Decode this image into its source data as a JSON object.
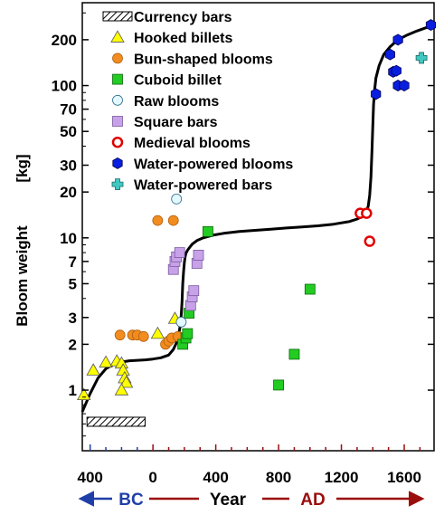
{
  "chart_data": {
    "type": "scatter",
    "xlabel": "Year",
    "ylabel": "Bloom weight",
    "ylabel_unit": "[kg]",
    "y_scale": "log",
    "xlim": [
      -450,
      1790
    ],
    "ylim": [
      0.4,
      350
    ],
    "x_ticks": [
      {
        "value": -400,
        "label": "400"
      },
      {
        "value": 0,
        "label": "0"
      },
      {
        "value": 400,
        "label": "400"
      },
      {
        "value": 800,
        "label": "800"
      },
      {
        "value": 1200,
        "label": "1200"
      },
      {
        "value": 1600,
        "label": "1600"
      }
    ],
    "y_ticks": [
      {
        "value": 1,
        "label": "1"
      },
      {
        "value": 2,
        "label": "2"
      },
      {
        "value": 3,
        "label": "3"
      },
      {
        "value": 5,
        "label": "5"
      },
      {
        "value": 7,
        "label": "7"
      },
      {
        "value": 10,
        "label": "10"
      },
      {
        "value": 20,
        "label": "20"
      },
      {
        "value": 30,
        "label": "30"
      },
      {
        "value": 50,
        "label": "50"
      },
      {
        "value": 70,
        "label": "70"
      },
      {
        "value": 100,
        "label": "100"
      },
      {
        "value": 200,
        "label": "200"
      }
    ],
    "era_labels": {
      "bc": "BC",
      "ad": "AD",
      "bc_color": "#1f3fa8",
      "ad_color": "#9b0d0d"
    },
    "legend_position": "top",
    "series": [
      {
        "name": "Currency bars",
        "marker": "hatched-rect",
        "color": "#000000",
        "range": {
          "x": [
            -420,
            -50
          ],
          "y": 0.62
        }
      },
      {
        "name": "Hooked billets",
        "marker": "triangle",
        "color": "#ffff00",
        "points": [
          [
            -440,
            0.93
          ],
          [
            -380,
            1.35
          ],
          [
            -300,
            1.52
          ],
          [
            -230,
            1.55
          ],
          [
            -200,
            1.5
          ],
          [
            -190,
            1.35
          ],
          [
            -180,
            1.2
          ],
          [
            -170,
            1.12
          ],
          [
            -200,
            1.0
          ],
          [
            30,
            2.35
          ],
          [
            140,
            2.95
          ]
        ]
      },
      {
        "name": "Bun-shaped blooms",
        "marker": "circle",
        "color": "#f28c1e",
        "points": [
          [
            -210,
            2.3
          ],
          [
            -130,
            2.3
          ],
          [
            -100,
            2.3
          ],
          [
            -60,
            2.25
          ],
          [
            30,
            13.0
          ],
          [
            130,
            13.0
          ],
          [
            80,
            2.0
          ],
          [
            100,
            2.1
          ],
          [
            120,
            2.2
          ],
          [
            160,
            2.25
          ]
        ]
      },
      {
        "name": "Cuboid billet",
        "marker": "square",
        "color": "#22cc22",
        "points": [
          [
            190,
            2.0
          ],
          [
            210,
            2.2
          ],
          [
            220,
            2.35
          ],
          [
            230,
            3.2
          ],
          [
            350,
            11.0
          ],
          [
            800,
            1.08
          ],
          [
            900,
            1.72
          ],
          [
            1000,
            4.6
          ]
        ]
      },
      {
        "name": "Raw blooms",
        "marker": "circle",
        "color": "#e4f8ff",
        "points": [
          [
            150,
            18.0
          ],
          [
            180,
            2.8
          ]
        ]
      },
      {
        "name": "Square bars",
        "marker": "square",
        "color": "#c8a2e8",
        "points": [
          [
            130,
            6.2
          ],
          [
            140,
            7.0
          ],
          [
            150,
            7.5
          ],
          [
            170,
            8.0
          ],
          [
            240,
            3.6
          ],
          [
            250,
            4.1
          ],
          [
            260,
            4.5
          ],
          [
            280,
            6.8
          ],
          [
            290,
            7.7
          ]
        ]
      },
      {
        "name": "Medieval blooms",
        "marker": "ring",
        "color": "#e00000",
        "points": [
          [
            1320,
            14.5
          ],
          [
            1360,
            14.5
          ],
          [
            1380,
            9.5
          ]
        ]
      },
      {
        "name": "Water-powered blooms",
        "marker": "hexagon",
        "color": "#0a1ee0",
        "points": [
          [
            1420,
            88
          ],
          [
            1510,
            160
          ],
          [
            1530,
            123
          ],
          [
            1560,
            200
          ],
          [
            1560,
            100
          ],
          [
            1600,
            100
          ],
          [
            1550,
            125
          ],
          [
            1770,
            250
          ]
        ]
      },
      {
        "name": "Water-powered bars",
        "marker": "plus",
        "color": "#40c8c0",
        "points": [
          [
            1710,
            152
          ]
        ]
      }
    ],
    "trend_curve": {
      "x": [
        -450,
        -400,
        -350,
        -300,
        -250,
        -200,
        -150,
        -100,
        -50,
        0,
        50,
        100,
        130,
        150,
        165,
        175,
        180,
        185,
        190,
        195,
        200,
        205,
        210,
        220,
        235,
        250,
        280,
        320,
        380,
        450,
        550,
        650,
        750,
        850,
        950,
        1050,
        1150,
        1250,
        1300,
        1330,
        1350,
        1370,
        1380,
        1388,
        1395,
        1400,
        1405,
        1412,
        1420,
        1440,
        1470,
        1510,
        1560,
        1620,
        1680,
        1740,
        1790
      ],
      "y": [
        0.72,
        0.95,
        1.2,
        1.38,
        1.48,
        1.53,
        1.56,
        1.57,
        1.58,
        1.6,
        1.63,
        1.7,
        1.85,
        2.05,
        2.35,
        2.7,
        3.1,
        3.8,
        5.0,
        6.0,
        6.9,
        7.5,
        7.9,
        8.3,
        8.7,
        9.1,
        9.6,
        10.0,
        10.4,
        10.7,
        11.0,
        11.2,
        11.4,
        11.6,
        11.8,
        12.0,
        12.3,
        12.8,
        13.3,
        13.8,
        14.5,
        16.0,
        19.0,
        25.0,
        38.0,
        55.0,
        75.0,
        95.0,
        112.0,
        135.0,
        160.0,
        180.0,
        200.0,
        215.0,
        228.0,
        240.0,
        248.0
      ]
    }
  }
}
